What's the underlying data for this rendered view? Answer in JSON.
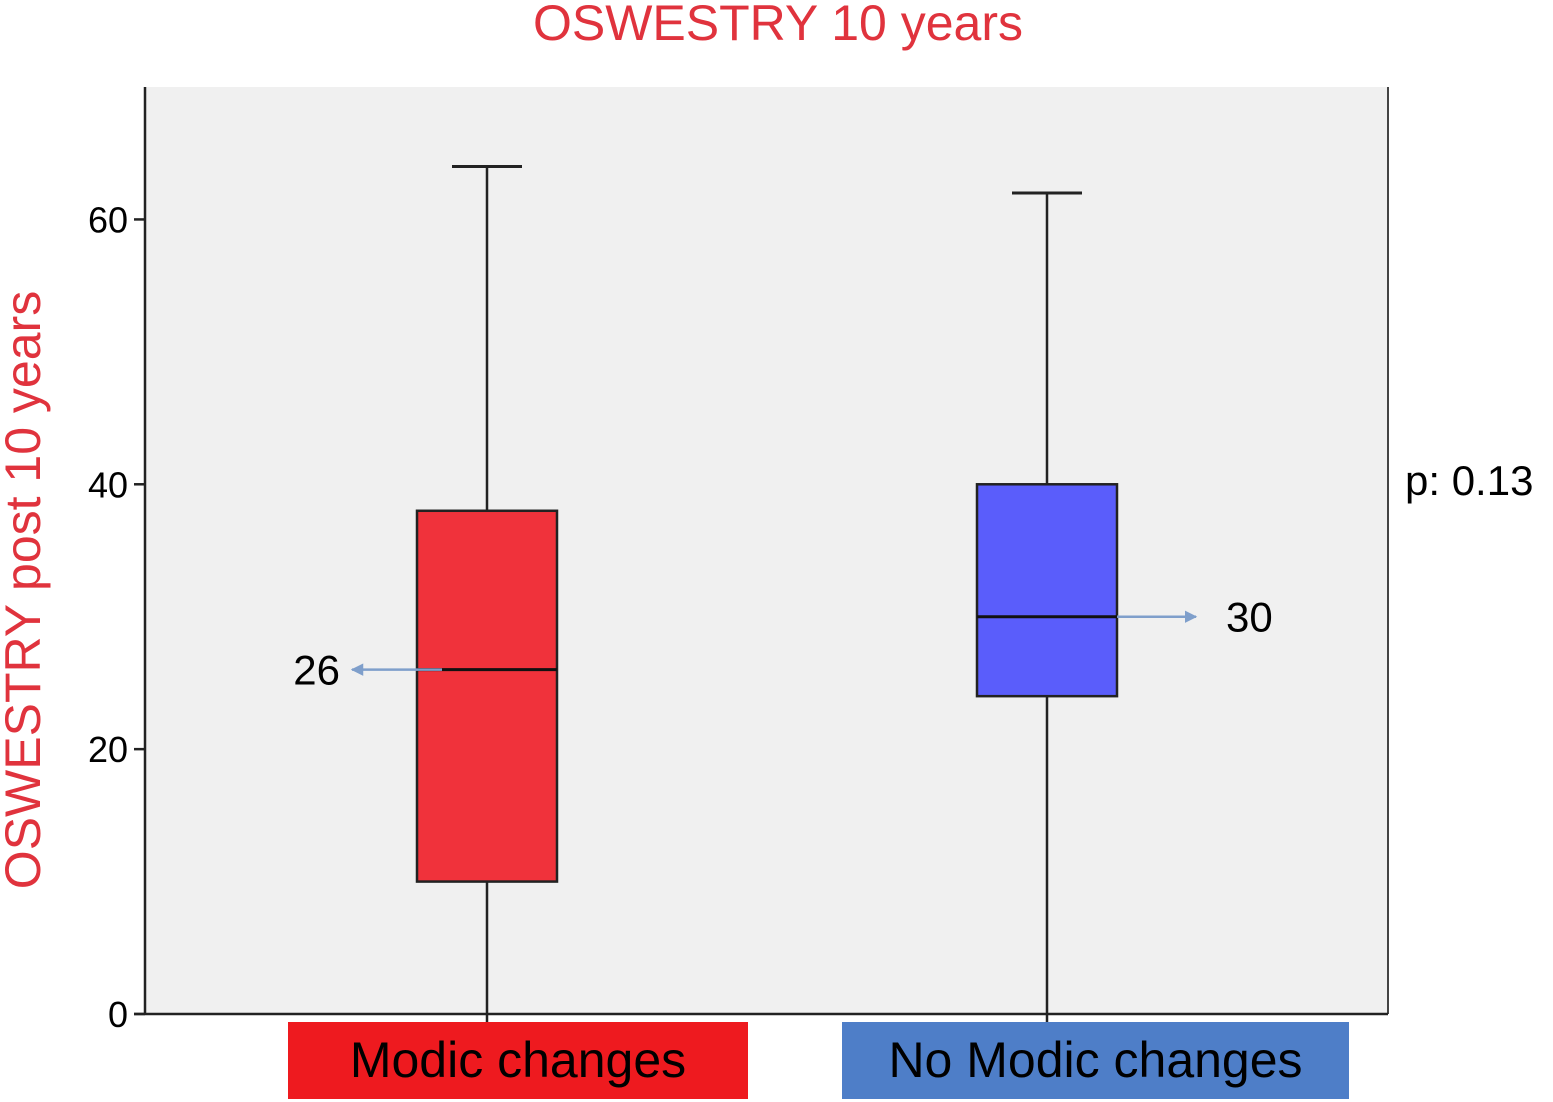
{
  "chart_data": {
    "type": "box",
    "title": "OSWESTRY 10 years",
    "ylabel": "OSWESTRY post 10 years",
    "xlabel": "",
    "ylim": [
      0,
      70
    ],
    "yticks": [
      0,
      20,
      40,
      60
    ],
    "grid": false,
    "annotation": "p: 0.13",
    "series": [
      {
        "name": "Modic changes",
        "whisker_low": 0,
        "q1": 10,
        "median": 26,
        "q3": 38,
        "whisker_high": 64,
        "median_label": "26",
        "median_label_side": "left",
        "box_color": "#f0323b",
        "label_bg_color": "#ee1a1f"
      },
      {
        "name": "No Modic changes",
        "whisker_low": 0,
        "q1": 24,
        "median": 30,
        "q3": 40,
        "whisker_high": 62,
        "median_label": "30",
        "median_label_side": "right",
        "box_color": "#5a5dfb",
        "label_bg_color": "#4e7ec8"
      }
    ],
    "colors": {
      "title": "#e0333d",
      "plot_background": "#f0f0f0",
      "arrow": "#7f9fcb"
    }
  }
}
